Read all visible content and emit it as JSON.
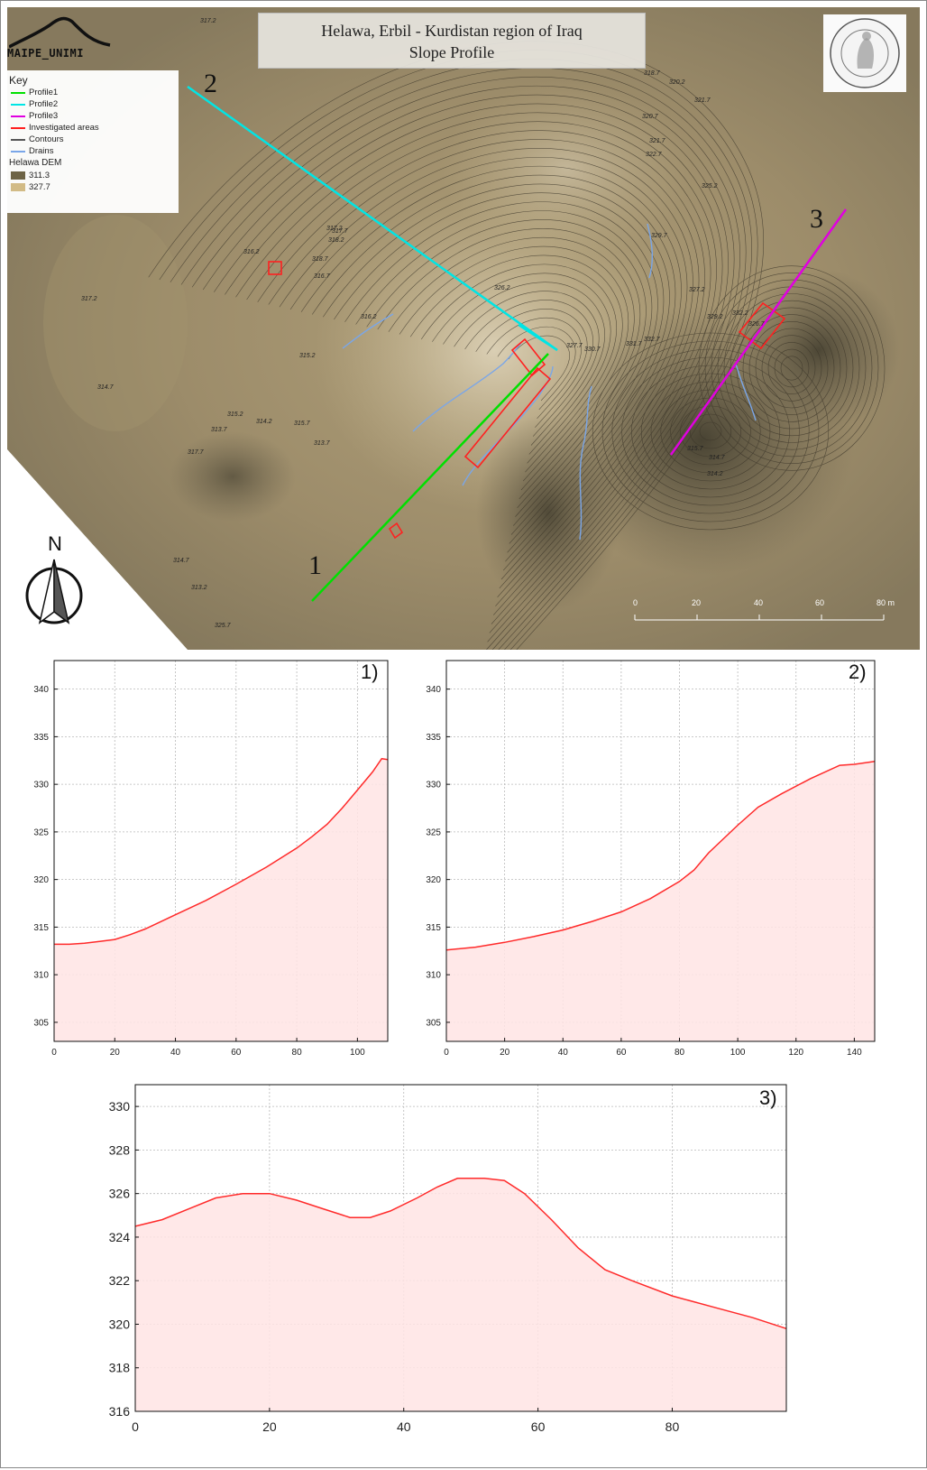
{
  "header": {
    "title_line1": "Helawa, Erbil - Kurdistan region of Iraq",
    "title_line2": "Slope Profile",
    "logo_text": "MAIPE_UNIMI"
  },
  "legend": {
    "title": "Key",
    "items": [
      {
        "label": "Profile1",
        "color": "#00e000"
      },
      {
        "label": "Profile2",
        "color": "#00e5e5"
      },
      {
        "label": "Profile3",
        "color": "#e000e0"
      },
      {
        "label": "Investigated areas",
        "color": "#ff2020"
      },
      {
        "label": "Contours",
        "color": "#555555"
      },
      {
        "label": "Drains",
        "color": "#7aa6e8"
      }
    ],
    "dem_title": "Helawa DEM",
    "dem_low": "311.3",
    "dem_high": "327.7",
    "dem_low_color": "#6e6446",
    "dem_high_color": "#d2bb86"
  },
  "map_labels": {
    "profile1": "1",
    "profile2": "2",
    "profile3": "3",
    "north": "N",
    "contours": [
      "317.2",
      "318.7",
      "320.2",
      "321.7",
      "320.7",
      "321.7",
      "322.7",
      "325.2",
      "329.7",
      "326.2",
      "317.7",
      "317.2",
      "318.2",
      "316.2",
      "318.7",
      "316.7",
      "316.2",
      "315.2",
      "314.7",
      "313.7",
      "317.7",
      "315.2",
      "314.2",
      "315.7",
      "313.7",
      "314.7",
      "313.2",
      "325.7",
      "327.2",
      "329.2",
      "332.2",
      "327.7",
      "330.7",
      "331.7",
      "332.7",
      "326.7",
      "315.7",
      "314.7",
      "314.2",
      "317.2"
    ]
  },
  "scale_bar": {
    "labels": [
      "0",
      "20",
      "40",
      "60",
      "80 m"
    ]
  },
  "chart_data": [
    {
      "type": "area",
      "title": "1)",
      "xlim": [
        0,
        110
      ],
      "ylim": [
        303,
        343
      ],
      "xticks": [
        0,
        20,
        40,
        60,
        80,
        100
      ],
      "yticks": [
        305,
        310,
        315,
        320,
        325,
        330,
        335,
        340
      ],
      "x": [
        0,
        5,
        10,
        15,
        20,
        25,
        30,
        40,
        50,
        60,
        70,
        80,
        85,
        90,
        95,
        100,
        105,
        108,
        110
      ],
      "y": [
        313.2,
        313.2,
        313.3,
        313.5,
        313.7,
        314.2,
        314.8,
        316.3,
        317.8,
        319.5,
        321.3,
        323.3,
        324.5,
        325.8,
        327.5,
        329.4,
        331.3,
        332.7,
        332.6
      ]
    },
    {
      "type": "area",
      "title": "2)",
      "xlim": [
        0,
        147
      ],
      "ylim": [
        303,
        343
      ],
      "xticks": [
        0,
        20,
        40,
        60,
        80,
        100,
        120,
        140
      ],
      "yticks": [
        305,
        310,
        315,
        320,
        325,
        330,
        335,
        340
      ],
      "x": [
        0,
        10,
        20,
        30,
        40,
        50,
        60,
        70,
        80,
        85,
        90,
        100,
        107,
        115,
        125,
        135,
        140,
        147
      ],
      "y": [
        312.6,
        312.9,
        313.4,
        314.0,
        314.7,
        315.6,
        316.6,
        318.0,
        319.8,
        321.0,
        322.8,
        325.7,
        327.6,
        329.0,
        330.6,
        332.0,
        332.1,
        332.4
      ]
    },
    {
      "type": "area",
      "title": "3)",
      "xlim": [
        0,
        97
      ],
      "ylim": [
        316,
        331
      ],
      "xticks": [
        0,
        20,
        40,
        60,
        80
      ],
      "yticks": [
        316,
        318,
        320,
        322,
        324,
        326,
        328,
        330
      ],
      "x": [
        0,
        4,
        8,
        12,
        16,
        20,
        24,
        28,
        32,
        35,
        38,
        42,
        45,
        48,
        52,
        55,
        58,
        62,
        66,
        70,
        74,
        80,
        86,
        92,
        97
      ],
      "y": [
        324.5,
        324.8,
        325.3,
        325.8,
        326.0,
        326.0,
        325.7,
        325.3,
        324.9,
        324.9,
        325.2,
        325.8,
        326.3,
        326.7,
        326.7,
        326.6,
        326.0,
        324.8,
        323.5,
        322.5,
        322.0,
        321.3,
        320.8,
        320.3,
        319.8
      ]
    }
  ]
}
